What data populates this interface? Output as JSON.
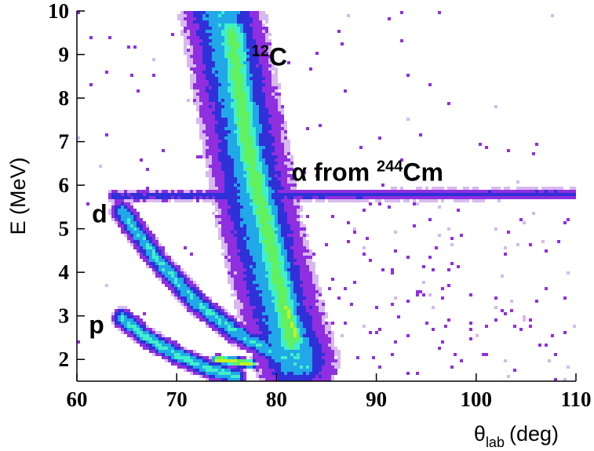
{
  "chart_data": {
    "type": "heatmap",
    "title": "",
    "xlabel": {
      "main": "θ",
      "sub": "lab",
      "unit": "(deg)"
    },
    "ylabel": "E (MeV)",
    "xlim": [
      60,
      110
    ],
    "ylim": [
      1.5,
      10
    ],
    "xticks": [
      60,
      70,
      80,
      90,
      100,
      110
    ],
    "yticks": [
      2,
      3,
      4,
      5,
      6,
      7,
      8,
      9,
      10
    ],
    "grid": false,
    "colormap": [
      "#d8b8ef",
      "#8f2fe0",
      "#3030d8",
      "#20a8e8",
      "#40f0c8",
      "#60f060",
      "#c8f020"
    ],
    "annotations": [
      {
        "text": "12",
        "suffix": "C",
        "x": 77.5,
        "y": 8.75
      },
      {
        "text": "α from ",
        "sup": "244",
        "suffix": "Cm",
        "x": 81.5,
        "y": 6.1
      },
      {
        "text": "d",
        "x": 61.5,
        "y": 5.15
      },
      {
        "text": "p",
        "x": 61.2,
        "y": 2.6
      }
    ],
    "loci": [
      {
        "name": "12C",
        "points": [
          [
            74.5,
            10
          ],
          [
            76.5,
            7.5
          ],
          [
            78,
            5.5
          ],
          [
            80,
            3.5
          ],
          [
            81.2,
            2.5
          ],
          [
            82,
            2
          ]
        ],
        "half_width": 3.5,
        "peak": 0.55
      },
      {
        "name": "12C-core",
        "points": [
          [
            75.5,
            9.5
          ],
          [
            77,
            7
          ],
          [
            79,
            5
          ],
          [
            80.5,
            3.5
          ],
          [
            81.5,
            2.4
          ]
        ],
        "half_width": 1.8,
        "peak": 0.78
      },
      {
        "name": "alpha",
        "points": [
          [
            63.5,
            5.75
          ],
          [
            110,
            5.8
          ]
        ],
        "half_width": 0.12,
        "peak": 0.35
      },
      {
        "name": "d",
        "points": [
          [
            64.5,
            5.4
          ],
          [
            68,
            4.3
          ],
          [
            72,
            3.3
          ],
          [
            76,
            2.6
          ],
          [
            80,
            2.1
          ],
          [
            83,
            1.8
          ]
        ],
        "half_width": 1.0,
        "peak": 0.58
      },
      {
        "name": "p",
        "points": [
          [
            64.5,
            2.95
          ],
          [
            67,
            2.5
          ],
          [
            70,
            2.1
          ],
          [
            73,
            1.8
          ],
          [
            76,
            1.6
          ]
        ],
        "half_width": 0.9,
        "peak": 0.6
      },
      {
        "name": "hot-spot",
        "points": [
          [
            74,
            2.0
          ],
          [
            77.5,
            1.9
          ]
        ],
        "half_width": 0.45,
        "peak": 0.97
      },
      {
        "name": "hot-spot-2",
        "points": [
          [
            81,
            3.2
          ],
          [
            82,
            2.5
          ]
        ],
        "half_width": 0.5,
        "peak": 0.92
      }
    ]
  }
}
